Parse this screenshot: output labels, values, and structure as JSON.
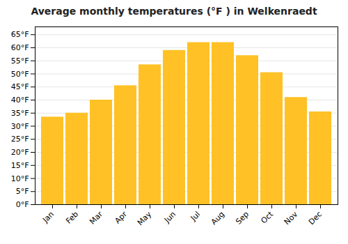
{
  "chart_data": {
    "type": "bar",
    "title": "Average monthly temperatures (°F ) in Welkenraedt",
    "categories": [
      "Jan",
      "Feb",
      "Mar",
      "Apr",
      "May",
      "Jun",
      "Jul",
      "Aug",
      "Sep",
      "Oct",
      "Nov",
      "Dec"
    ],
    "values": [
      33.5,
      35.0,
      40.0,
      45.5,
      53.5,
      59.0,
      62.0,
      62.0,
      57.0,
      50.5,
      41.0,
      35.5
    ],
    "color": "#FFC125",
    "ylim": [
      0,
      68
    ],
    "yticks": [
      {
        "value": 0,
        "label": "0°F"
      },
      {
        "value": 5,
        "label": "5°F"
      },
      {
        "value": 10,
        "label": "10°F"
      },
      {
        "value": 15,
        "label": "15°F"
      },
      {
        "value": 20,
        "label": "20°F"
      },
      {
        "value": 25,
        "label": "25°F"
      },
      {
        "value": 30,
        "label": "30°F"
      },
      {
        "value": 35,
        "label": "35°F"
      },
      {
        "value": 40,
        "label": "40°F"
      },
      {
        "value": 45,
        "label": "45°F"
      },
      {
        "value": 50,
        "label": "50°F"
      },
      {
        "value": 55,
        "label": "55°F"
      },
      {
        "value": 60,
        "label": "60°F"
      },
      {
        "value": 65,
        "label": "65°F"
      }
    ],
    "grid": true
  }
}
